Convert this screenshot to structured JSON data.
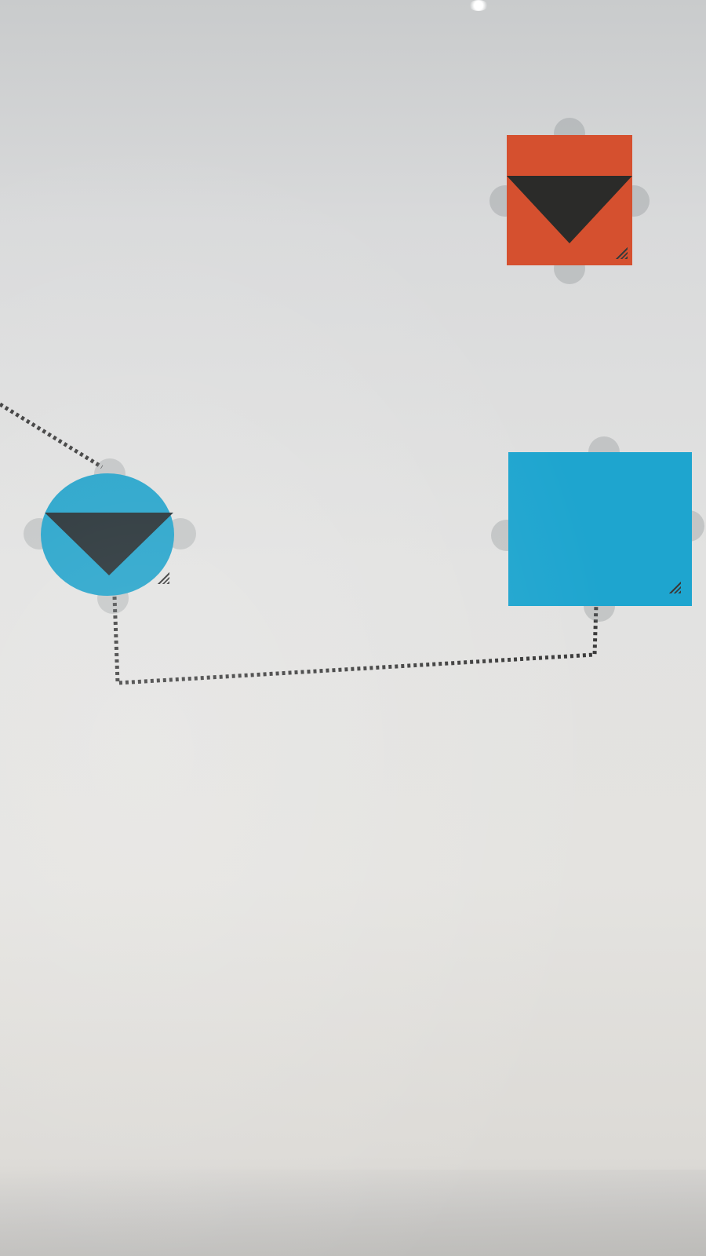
{
  "canvas": {
    "background": "#e2e2e1"
  },
  "nodes": [
    {
      "id": "node-orange-square",
      "shape": "square",
      "color": "#d5502f",
      "icon": "triangle-down-icon"
    },
    {
      "id": "node-blue-circle",
      "shape": "circle",
      "color": "#1fa1c9",
      "icon": "triangle-down-icon"
    },
    {
      "id": "node-blue-square",
      "shape": "square",
      "color": "#1ea5cf",
      "icon": ""
    }
  ],
  "connectors": [
    {
      "from": "offscreen-left",
      "to": "node-blue-circle",
      "style": "dotted",
      "color": "#3a3a3a"
    },
    {
      "from": "node-blue-circle",
      "to": "node-blue-square",
      "style": "dotted",
      "color": "#3a3a3a"
    }
  ]
}
